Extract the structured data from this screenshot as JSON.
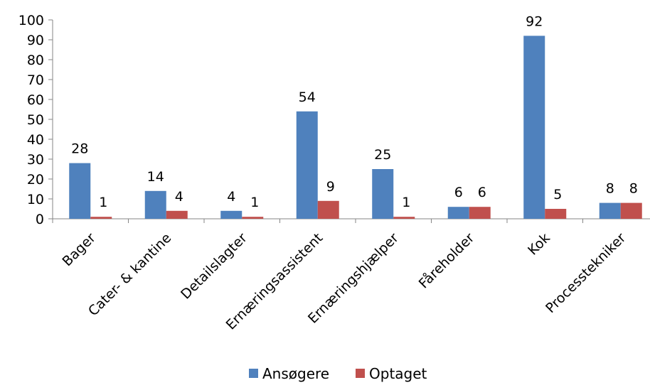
{
  "chart_data": {
    "type": "bar",
    "categories": [
      "Bager",
      "Cater- & kantine",
      "Detailslagter",
      "Ernæringsassistent",
      "Ernæringshjælper",
      "Fåreholder",
      "Kok",
      "Processtekniker"
    ],
    "series": [
      {
        "name": "Ansøgere",
        "values": [
          28,
          14,
          4,
          54,
          25,
          6,
          92,
          8
        ],
        "color": "#4F81BD"
      },
      {
        "name": "Optaget",
        "values": [
          1,
          4,
          1,
          9,
          1,
          6,
          5,
          8
        ],
        "color": "#C0504D"
      }
    ],
    "ylim": [
      0,
      100
    ],
    "yticks": [
      "0",
      "10",
      "20",
      "30",
      "40",
      "50",
      "60",
      "70",
      "80",
      "90",
      "100"
    ],
    "grid": false,
    "legend_position": "bottom"
  }
}
